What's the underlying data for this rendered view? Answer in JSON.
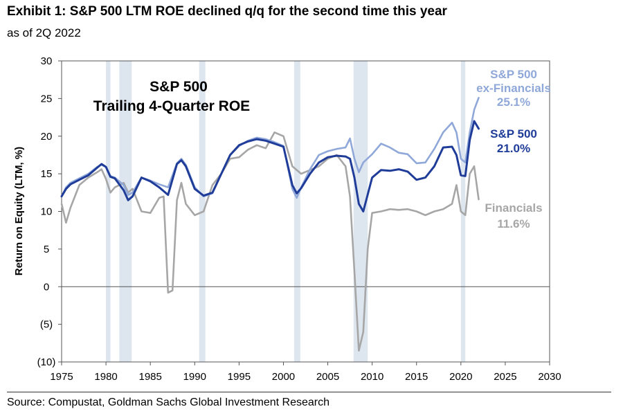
{
  "title": "Exhibit 1: S&P 500 LTM ROE declined q/q for the second time this year",
  "subtitle": "as of 2Q 2022",
  "source": "Source: Compustat, Goldman Sachs Global Investment Research",
  "chart_data": {
    "type": "line",
    "inset_title": [
      "S&P 500",
      "Trailing 4-Quarter ROE"
    ],
    "ylabel": "Return on Equity (LTM, %)",
    "xlabel": "",
    "xlim": [
      1975,
      2030
    ],
    "ylim": [
      -10,
      30
    ],
    "x_ticks": [
      1975,
      1980,
      1985,
      1990,
      1995,
      2000,
      2005,
      2010,
      2015,
      2020,
      2025,
      2030
    ],
    "x_tick_labels": [
      "1975",
      "1980",
      "1985",
      "1990",
      "1995",
      "2000",
      "2005",
      "2010",
      "2015",
      "2020",
      "2025",
      "2030"
    ],
    "y_ticks": [
      -10,
      -5,
      0,
      5,
      10,
      15,
      20,
      25,
      30
    ],
    "y_tick_labels": [
      "(10)",
      "(5)",
      "0",
      "5",
      "10",
      "15",
      "20",
      "25",
      "30"
    ],
    "grid": false,
    "recessions": [
      [
        1980.0,
        1980.5
      ],
      [
        1981.5,
        1982.9
      ],
      [
        1990.5,
        1991.2
      ],
      [
        2001.2,
        2001.9
      ],
      [
        2007.9,
        2009.5
      ],
      [
        2020.0,
        2020.5
      ]
    ],
    "series": [
      {
        "name": "S&P 500 ex-Financials",
        "color": "#8fa8d9",
        "label_lines": [
          "S&P 500",
          "ex-Financials",
          "25.1%"
        ],
        "x": [
          1975,
          1975.5,
          1976,
          1977,
          1978,
          1979,
          1979.5,
          1980,
          1980.5,
          1981,
          1982,
          1982.5,
          1983,
          1984,
          1985,
          1986,
          1987,
          1988,
          1988.5,
          1989,
          1990,
          1991,
          1992,
          1993,
          1994,
          1995,
          1996,
          1997,
          1998,
          1999,
          2000,
          2001,
          2001.5,
          2002,
          2003,
          2004,
          2005,
          2006,
          2007,
          2007.5,
          2008,
          2008.5,
          2009,
          2010,
          2011,
          2012,
          2013,
          2014,
          2015,
          2016,
          2017,
          2018,
          2019,
          2019.5,
          2020,
          2020.5,
          2021,
          2021.5,
          2022
        ],
        "y": [
          12.0,
          13.2,
          13.8,
          14.4,
          15.0,
          15.9,
          16.2,
          15.9,
          14.7,
          14.5,
          13.5,
          12.2,
          12.5,
          14.5,
          14.1,
          13.6,
          13.2,
          16.4,
          17.0,
          16.2,
          13.2,
          12.0,
          12.4,
          15.0,
          17.5,
          18.7,
          19.4,
          19.8,
          19.6,
          19.2,
          18.7,
          13.0,
          11.8,
          13.2,
          15.6,
          17.5,
          18.0,
          18.3,
          18.5,
          19.7,
          17.0,
          15.2,
          16.5,
          17.6,
          19.0,
          18.5,
          17.8,
          17.6,
          16.4,
          16.5,
          18.3,
          20.5,
          21.8,
          20.5,
          17.0,
          16.5,
          20.5,
          23.5,
          25.1
        ]
      },
      {
        "name": "S&P 500",
        "color": "#1f3c99",
        "label_lines": [
          "S&P 500",
          "21.0%"
        ],
        "x": [
          1975,
          1975.5,
          1976,
          1977,
          1978,
          1979,
          1979.5,
          1980,
          1980.5,
          1981,
          1982,
          1982.5,
          1983,
          1984,
          1985,
          1986,
          1987,
          1988,
          1988.5,
          1989,
          1990,
          1991,
          1992,
          1993,
          1994,
          1995,
          1996,
          1997,
          1998,
          1999,
          2000,
          2001,
          2001.5,
          2002,
          2003,
          2004,
          2005,
          2006,
          2007,
          2007.5,
          2008,
          2008.5,
          2009,
          2010,
          2011,
          2012,
          2013,
          2014,
          2015,
          2016,
          2017,
          2018,
          2019,
          2019.5,
          2020,
          2020.5,
          2021,
          2021.5,
          2022
        ],
        "y": [
          12.0,
          13.0,
          13.6,
          14.2,
          14.8,
          15.8,
          16.3,
          15.9,
          14.6,
          14.4,
          12.8,
          11.5,
          12.0,
          14.5,
          14.0,
          13.2,
          12.2,
          16.3,
          16.8,
          16.0,
          13.0,
          12.1,
          12.5,
          15.0,
          17.5,
          18.8,
          19.3,
          19.6,
          19.4,
          19.0,
          18.6,
          13.5,
          12.4,
          13.1,
          15.0,
          16.5,
          17.2,
          17.4,
          17.3,
          17.0,
          14.5,
          11.0,
          10.0,
          14.5,
          15.5,
          15.4,
          15.6,
          15.3,
          14.2,
          14.5,
          16.0,
          18.5,
          18.6,
          17.5,
          14.8,
          14.7,
          19.5,
          22.0,
          21.0
        ]
      },
      {
        "name": "Financials",
        "color": "#a6a6a6",
        "label_lines": [
          "Financials",
          "11.6%"
        ],
        "x": [
          1975,
          1975.5,
          1976,
          1977,
          1978,
          1979,
          1979.5,
          1980,
          1980.5,
          1981,
          1982,
          1982.5,
          1983,
          1984,
          1985,
          1986,
          1986.5,
          1987,
          1987.5,
          1988,
          1988.5,
          1989,
          1990,
          1991,
          1992,
          1993,
          1994,
          1995,
          1996,
          1997,
          1998,
          1999,
          2000,
          2001,
          2002,
          2003,
          2004,
          2005,
          2006,
          2007,
          2007.5,
          2008,
          2008.5,
          2009,
          2009.5,
          2010,
          2011,
          2012,
          2013,
          2014,
          2015,
          2016,
          2017,
          2018,
          2019,
          2019.5,
          2020,
          2020.5,
          2021,
          2021.5,
          2022
        ],
        "y": [
          11.0,
          8.5,
          10.5,
          13.5,
          14.5,
          15.2,
          15.6,
          14.3,
          12.5,
          13.2,
          13.8,
          12.5,
          13.0,
          10.0,
          9.8,
          11.8,
          12.0,
          -0.8,
          -0.5,
          11.5,
          13.8,
          11.0,
          9.5,
          10.0,
          13.5,
          15.0,
          17.0,
          17.2,
          18.2,
          18.8,
          18.4,
          20.5,
          20.0,
          16.0,
          15.0,
          15.5,
          16.0,
          17.0,
          17.5,
          16.0,
          12.0,
          2.0,
          -8.5,
          -6.0,
          5.0,
          9.8,
          10.0,
          10.3,
          10.2,
          10.3,
          10.0,
          9.5,
          10.0,
          10.3,
          11.0,
          13.5,
          10.0,
          9.5,
          15.0,
          16.0,
          11.6
        ]
      }
    ]
  }
}
